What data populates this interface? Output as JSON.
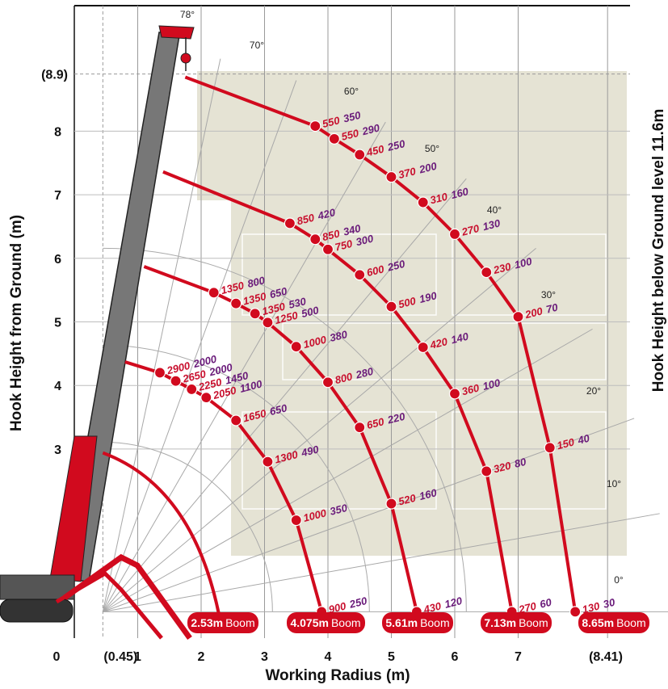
{
  "chart_data": {
    "type": "scatter",
    "xlabel": "Working Radius (m)",
    "ylabel": "Hook Height from Ground (m)",
    "right_label": "Hook Height below Ground level  11.6m",
    "x_ticks": [
      "0",
      "(0.45)",
      "1",
      "2",
      "3",
      "4",
      "5",
      "6",
      "7",
      "(8.41)"
    ],
    "y_ticks": [
      "3",
      "4",
      "5",
      "6",
      "7",
      "8",
      "(8.9)"
    ],
    "angle_labels": [
      "78°",
      "70°",
      "60°",
      "50°",
      "40°",
      "30°",
      "20°",
      "10°",
      "0°"
    ],
    "colors": {
      "curve": "#d10a1e",
      "label_first": "#c8102e",
      "label_second": "#6a1b7a",
      "shade": "#e5e3d4"
    },
    "booms": [
      {
        "label": "2.53m",
        "unit": "Boom",
        "points": []
      },
      {
        "label": "4.075m",
        "unit": "Boom",
        "points": [
          {
            "x": 1.35,
            "y": 4.2,
            "a": "2900",
            "b": "2000"
          },
          {
            "x": 1.6,
            "y": 4.07,
            "a": "2650",
            "b": "2000"
          },
          {
            "x": 1.85,
            "y": 3.94,
            "a": "2250",
            "b": "1450"
          },
          {
            "x": 2.08,
            "y": 3.81,
            "a": "2050",
            "b": "1100"
          },
          {
            "x": 2.55,
            "y": 3.45,
            "a": "1650",
            "b": "650"
          },
          {
            "x": 3.05,
            "y": 2.8,
            "a": "1300",
            "b": "490"
          },
          {
            "x": 3.5,
            "y": 1.88,
            "a": "1000",
            "b": "350"
          },
          {
            "x": 3.9,
            "y": 0.44,
            "a": "900",
            "b": "250"
          }
        ]
      },
      {
        "label": "5.61m",
        "unit": "Boom",
        "points": [
          {
            "x": 2.2,
            "y": 5.46,
            "a": "1350",
            "b": "800"
          },
          {
            "x": 2.55,
            "y": 5.29,
            "a": "1350",
            "b": "650"
          },
          {
            "x": 2.85,
            "y": 5.13,
            "a": "1350",
            "b": "530"
          },
          {
            "x": 3.05,
            "y": 4.99,
            "a": "1250",
            "b": "500"
          },
          {
            "x": 3.5,
            "y": 4.61,
            "a": "1000",
            "b": "380"
          },
          {
            "x": 4.0,
            "y": 4.05,
            "a": "800",
            "b": "280"
          },
          {
            "x": 4.5,
            "y": 3.34,
            "a": "650",
            "b": "220"
          },
          {
            "x": 5.0,
            "y": 2.14,
            "a": "520",
            "b": "160"
          },
          {
            "x": 5.4,
            "y": 0.44,
            "a": "430",
            "b": "120"
          }
        ]
      },
      {
        "label": "7.13m",
        "unit": "Boom",
        "points": [
          {
            "x": 3.4,
            "y": 6.55,
            "a": "850",
            "b": "420"
          },
          {
            "x": 3.8,
            "y": 6.3,
            "a": "850",
            "b": "340"
          },
          {
            "x": 4.0,
            "y": 6.14,
            "a": "750",
            "b": "300"
          },
          {
            "x": 4.5,
            "y": 5.74,
            "a": "600",
            "b": "250"
          },
          {
            "x": 5.0,
            "y": 5.24,
            "a": "500",
            "b": "190"
          },
          {
            "x": 5.5,
            "y": 4.6,
            "a": "420",
            "b": "140"
          },
          {
            "x": 6.0,
            "y": 3.87,
            "a": "360",
            "b": "100"
          },
          {
            "x": 6.5,
            "y": 2.65,
            "a": "320",
            "b": "80"
          },
          {
            "x": 6.9,
            "y": 0.44,
            "a": "270",
            "b": "60"
          }
        ]
      },
      {
        "label": "8.65m",
        "unit": "Boom",
        "points": [
          {
            "x": 3.8,
            "y": 8.08,
            "a": "550",
            "b": "350"
          },
          {
            "x": 4.1,
            "y": 7.88,
            "a": "550",
            "b": "290"
          },
          {
            "x": 4.5,
            "y": 7.63,
            "a": "450",
            "b": "250"
          },
          {
            "x": 5.0,
            "y": 7.28,
            "a": "370",
            "b": "200"
          },
          {
            "x": 5.5,
            "y": 6.88,
            "a": "310",
            "b": "160"
          },
          {
            "x": 6.0,
            "y": 6.38,
            "a": "270",
            "b": "130"
          },
          {
            "x": 6.5,
            "y": 5.78,
            "a": "230",
            "b": "100"
          },
          {
            "x": 7.0,
            "y": 5.08,
            "a": "200",
            "b": "70"
          },
          {
            "x": 7.5,
            "y": 3.02,
            "a": "150",
            "b": "40"
          },
          {
            "x": 7.9,
            "y": 0.44,
            "a": "130",
            "b": "30"
          }
        ]
      }
    ]
  }
}
